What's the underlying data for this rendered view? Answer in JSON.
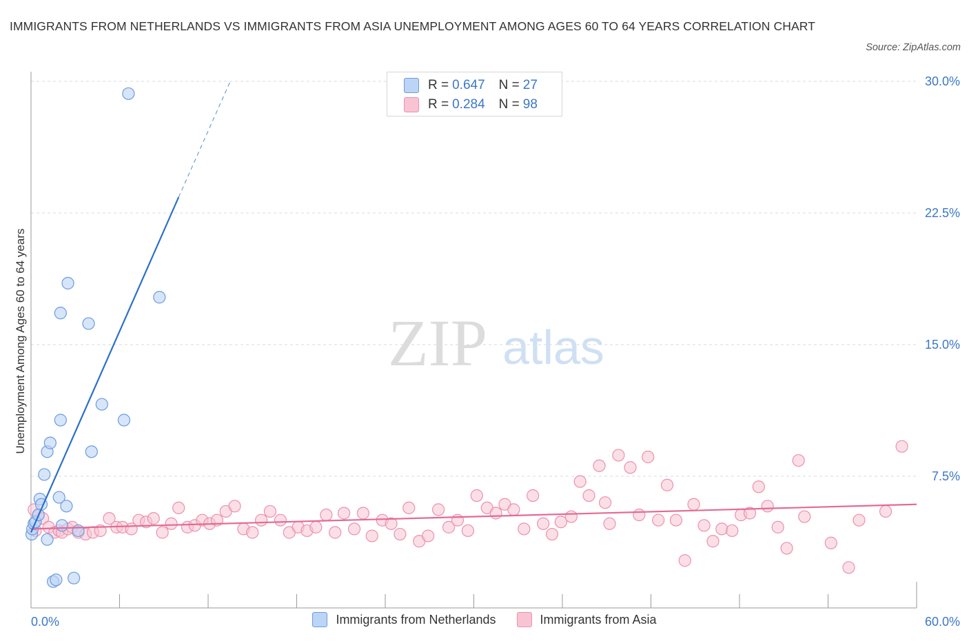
{
  "title": "IMMIGRANTS FROM NETHERLANDS VS IMMIGRANTS FROM ASIA UNEMPLOYMENT AMONG AGES 60 TO 64 YEARS CORRELATION CHART",
  "source": "Source: ZipAtlas.com",
  "watermark": {
    "zip": "ZIP",
    "atlas": "atlas"
  },
  "legend_top": [
    {
      "r_label": "R =",
      "r_value": "0.647",
      "n_label": "N =",
      "n_value": "27"
    },
    {
      "r_label": "R =",
      "r_value": "0.284",
      "n_label": "N =",
      "n_value": "98"
    }
  ],
  "colors": {
    "netherlands_fill": "#bcd4f5",
    "netherlands_stroke": "#6a9be0",
    "netherlands_line": "#2a6fc9",
    "asia_fill": "#f8c4d3",
    "asia_stroke": "#ec90ad",
    "asia_line": "#e36a95",
    "axis_label": "#3b77c7",
    "grid": "#d9d9d9"
  },
  "chart_data": {
    "type": "scatter",
    "title": "IMMIGRANTS FROM NETHERLANDS VS IMMIGRANTS FROM ASIA UNEMPLOYMENT AMONG AGES 60 TO 64 YEARS CORRELATION CHART",
    "xlabel": "",
    "ylabel": "Unemployment Among Ages 60 to 64 years",
    "xlim": [
      0,
      60
    ],
    "ylim": [
      0,
      30
    ],
    "x_tick_labels": [
      "0.0%",
      "60.0%"
    ],
    "y_ticks": [
      7.5,
      15.0,
      22.5,
      30.0
    ],
    "y_tick_labels": [
      "7.5%",
      "15.0%",
      "22.5%",
      "30.0%"
    ],
    "legend_position": "bottom-center",
    "series": [
      {
        "name": "Immigrants from Netherlands",
        "R": 0.647,
        "N": 27,
        "trend": {
          "x0": 0.0,
          "y0": 4.3,
          "x1": 10.0,
          "y1": 23.4,
          "dash_to_x": 13.5,
          "dash_to_y": 30.0
        },
        "points": [
          [
            0.05,
            4.2
          ],
          [
            0.1,
            4.5
          ],
          [
            0.2,
            4.8
          ],
          [
            0.3,
            4.9
          ],
          [
            0.5,
            5.3
          ],
          [
            0.6,
            6.2
          ],
          [
            0.7,
            5.9
          ],
          [
            0.9,
            7.6
          ],
          [
            1.1,
            8.9
          ],
          [
            1.3,
            9.4
          ],
          [
            1.9,
            6.3
          ],
          [
            2.0,
            10.7
          ],
          [
            2.1,
            4.7
          ],
          [
            2.4,
            5.8
          ],
          [
            2.5,
            18.5
          ],
          [
            2.0,
            16.8
          ],
          [
            1.1,
            3.9
          ],
          [
            1.5,
            1.5
          ],
          [
            1.7,
            1.6
          ],
          [
            2.9,
            1.7
          ],
          [
            3.2,
            4.4
          ],
          [
            3.9,
            16.2
          ],
          [
            4.1,
            8.9
          ],
          [
            4.8,
            11.6
          ],
          [
            6.3,
            10.7
          ],
          [
            6.6,
            29.3
          ],
          [
            8.7,
            17.7
          ]
        ]
      },
      {
        "name": "Immigrants from Asia",
        "R": 0.284,
        "N": 98,
        "trend": {
          "x0": 0.0,
          "y0": 4.5,
          "x1": 60.0,
          "y1": 5.9
        },
        "points": [
          [
            0.2,
            5.6
          ],
          [
            0.5,
            5.3
          ],
          [
            0.8,
            5.1
          ],
          [
            1.2,
            4.6
          ],
          [
            1.6,
            4.3
          ],
          [
            1.9,
            4.4
          ],
          [
            2.1,
            4.3
          ],
          [
            2.5,
            4.5
          ],
          [
            2.8,
            4.6
          ],
          [
            3.2,
            4.3
          ],
          [
            3.7,
            4.2
          ],
          [
            4.2,
            4.3
          ],
          [
            4.7,
            4.4
          ],
          [
            5.3,
            5.1
          ],
          [
            5.8,
            4.6
          ],
          [
            6.2,
            4.6
          ],
          [
            6.8,
            4.5
          ],
          [
            7.3,
            5.0
          ],
          [
            7.8,
            4.9
          ],
          [
            8.3,
            5.1
          ],
          [
            8.9,
            4.3
          ],
          [
            9.5,
            4.8
          ],
          [
            10.0,
            5.7
          ],
          [
            10.6,
            4.6
          ],
          [
            11.1,
            4.7
          ],
          [
            11.6,
            5.0
          ],
          [
            12.1,
            4.8
          ],
          [
            12.6,
            5.0
          ],
          [
            13.2,
            5.5
          ],
          [
            13.8,
            5.8
          ],
          [
            14.4,
            4.5
          ],
          [
            15.0,
            4.3
          ],
          [
            15.6,
            5.0
          ],
          [
            16.2,
            5.5
          ],
          [
            16.9,
            5.0
          ],
          [
            17.5,
            4.3
          ],
          [
            18.1,
            4.6
          ],
          [
            18.7,
            4.4
          ],
          [
            19.3,
            4.6
          ],
          [
            20.0,
            5.3
          ],
          [
            20.6,
            4.3
          ],
          [
            21.2,
            5.4
          ],
          [
            21.9,
            4.5
          ],
          [
            22.5,
            5.4
          ],
          [
            23.1,
            4.1
          ],
          [
            23.8,
            5.0
          ],
          [
            24.4,
            4.8
          ],
          [
            25.0,
            4.2
          ],
          [
            25.6,
            5.7
          ],
          [
            26.3,
            3.8
          ],
          [
            26.9,
            4.1
          ],
          [
            27.6,
            5.6
          ],
          [
            28.3,
            4.6
          ],
          [
            28.9,
            5.0
          ],
          [
            29.6,
            4.4
          ],
          [
            30.2,
            6.4
          ],
          [
            30.9,
            5.7
          ],
          [
            31.5,
            5.4
          ],
          [
            32.1,
            5.9
          ],
          [
            32.7,
            5.6
          ],
          [
            33.4,
            4.5
          ],
          [
            34.0,
            6.4
          ],
          [
            34.7,
            4.8
          ],
          [
            35.3,
            4.2
          ],
          [
            35.9,
            4.9
          ],
          [
            36.6,
            5.2
          ],
          [
            37.2,
            7.2
          ],
          [
            37.8,
            6.4
          ],
          [
            38.5,
            8.1
          ],
          [
            38.9,
            6.0
          ],
          [
            39.2,
            4.8
          ],
          [
            39.8,
            8.7
          ],
          [
            40.6,
            8.0
          ],
          [
            41.2,
            5.3
          ],
          [
            41.8,
            8.6
          ],
          [
            42.5,
            5.0
          ],
          [
            43.1,
            7.0
          ],
          [
            43.7,
            5.0
          ],
          [
            44.3,
            2.7
          ],
          [
            44.9,
            5.9
          ],
          [
            45.6,
            4.7
          ],
          [
            46.2,
            3.8
          ],
          [
            46.8,
            4.5
          ],
          [
            47.5,
            4.4
          ],
          [
            48.1,
            5.3
          ],
          [
            48.7,
            5.4
          ],
          [
            49.3,
            6.9
          ],
          [
            49.9,
            5.8
          ],
          [
            50.6,
            4.6
          ],
          [
            51.2,
            3.4
          ],
          [
            52.0,
            8.4
          ],
          [
            52.4,
            5.2
          ],
          [
            54.2,
            3.7
          ],
          [
            55.4,
            2.3
          ],
          [
            56.1,
            5.0
          ],
          [
            57.9,
            5.5
          ],
          [
            59.0,
            9.2
          ],
          [
            0.3,
            4.4
          ]
        ]
      }
    ]
  }
}
